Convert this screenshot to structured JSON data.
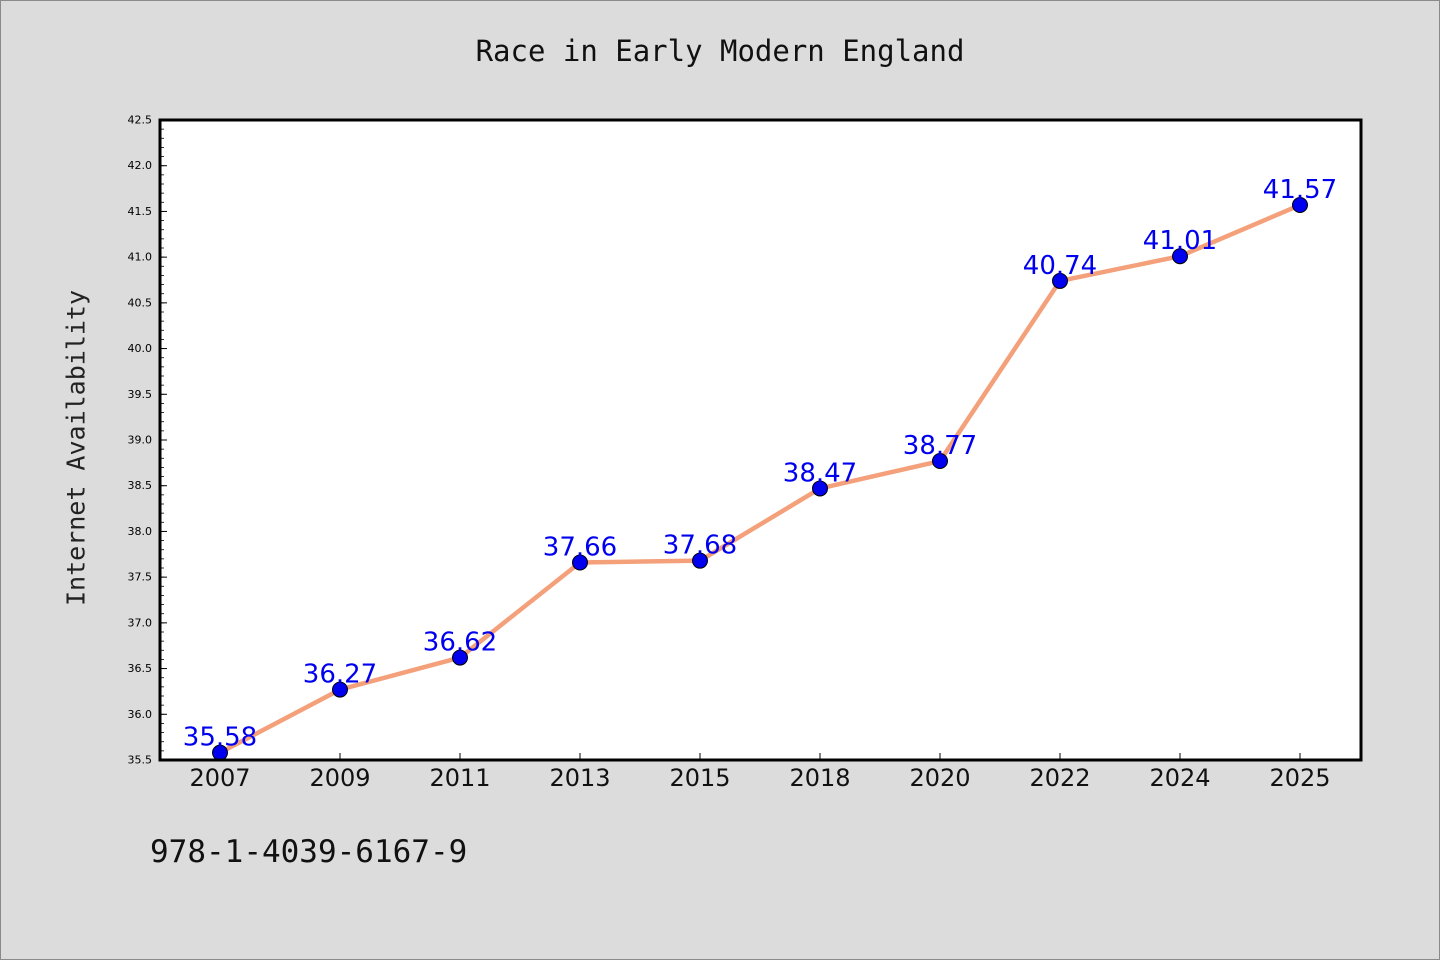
{
  "chart_data": {
    "type": "line",
    "title": "Race in Early Modern England",
    "ylabel": "Internet Availability",
    "xlabel": "",
    "categories": [
      "2007",
      "2009",
      "2011",
      "2013",
      "2015",
      "2018",
      "2020",
      "2022",
      "2024",
      "2025"
    ],
    "series": [
      {
        "values": [
          35.58,
          36.27,
          36.62,
          37.66,
          37.68,
          38.47,
          38.77,
          40.74,
          41.01,
          41.57
        ],
        "data_labels": [
          "35.58",
          "36.27",
          "36.62",
          "37.66",
          "37.68",
          "38.47",
          "38.77",
          "40.74",
          "41.01",
          "41.57"
        ],
        "line_color": "#f4a07a",
        "marker_color": "#0000ee"
      }
    ],
    "ylim": [
      35.5,
      42.5
    ],
    "yticks": [
      "35.5",
      "36.0",
      "36.5",
      "37.0",
      "37.5",
      "38.0",
      "38.5",
      "39.0",
      "39.5",
      "40.0",
      "40.5",
      "41.0",
      "41.5",
      "42.0",
      "42.5"
    ],
    "grid": false,
    "legend": "none",
    "label_color": "#0000ee"
  },
  "footer": {
    "code": "978-1-4039-6167-9"
  }
}
